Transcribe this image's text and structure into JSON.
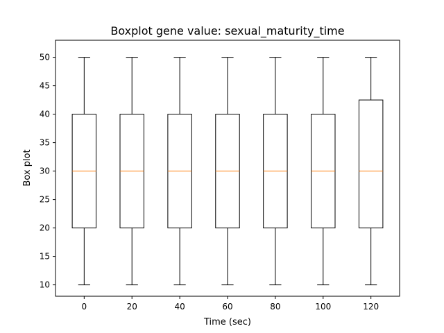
{
  "chart_data": {
    "type": "boxplot",
    "title": "Boxplot gene value: sexual_maturity_time",
    "xlabel": "Time (sec)",
    "ylabel": "Box plot",
    "x_ticks": [
      0,
      20,
      40,
      60,
      80,
      100,
      120
    ],
    "y_ticks": [
      10,
      15,
      20,
      25,
      30,
      35,
      40,
      45,
      50
    ],
    "ylim": [
      8,
      53
    ],
    "grid": false,
    "colors": {
      "box": "#000000",
      "median": "#ff7f0e"
    },
    "boxes": [
      {
        "x": 0,
        "min": 10,
        "q1": 20,
        "median": 30,
        "q3": 40,
        "max": 50
      },
      {
        "x": 20,
        "min": 10,
        "q1": 20,
        "median": 30,
        "q3": 40,
        "max": 50
      },
      {
        "x": 40,
        "min": 10,
        "q1": 20,
        "median": 30,
        "q3": 40,
        "max": 50
      },
      {
        "x": 60,
        "min": 10,
        "q1": 20,
        "median": 30,
        "q3": 40,
        "max": 50
      },
      {
        "x": 80,
        "min": 10,
        "q1": 20,
        "median": 30,
        "q3": 40,
        "max": 50
      },
      {
        "x": 100,
        "min": 10,
        "q1": 20,
        "median": 30,
        "q3": 40,
        "max": 50
      },
      {
        "x": 120,
        "min": 10,
        "q1": 20,
        "median": 30,
        "q3": 42.5,
        "max": 50
      }
    ]
  }
}
